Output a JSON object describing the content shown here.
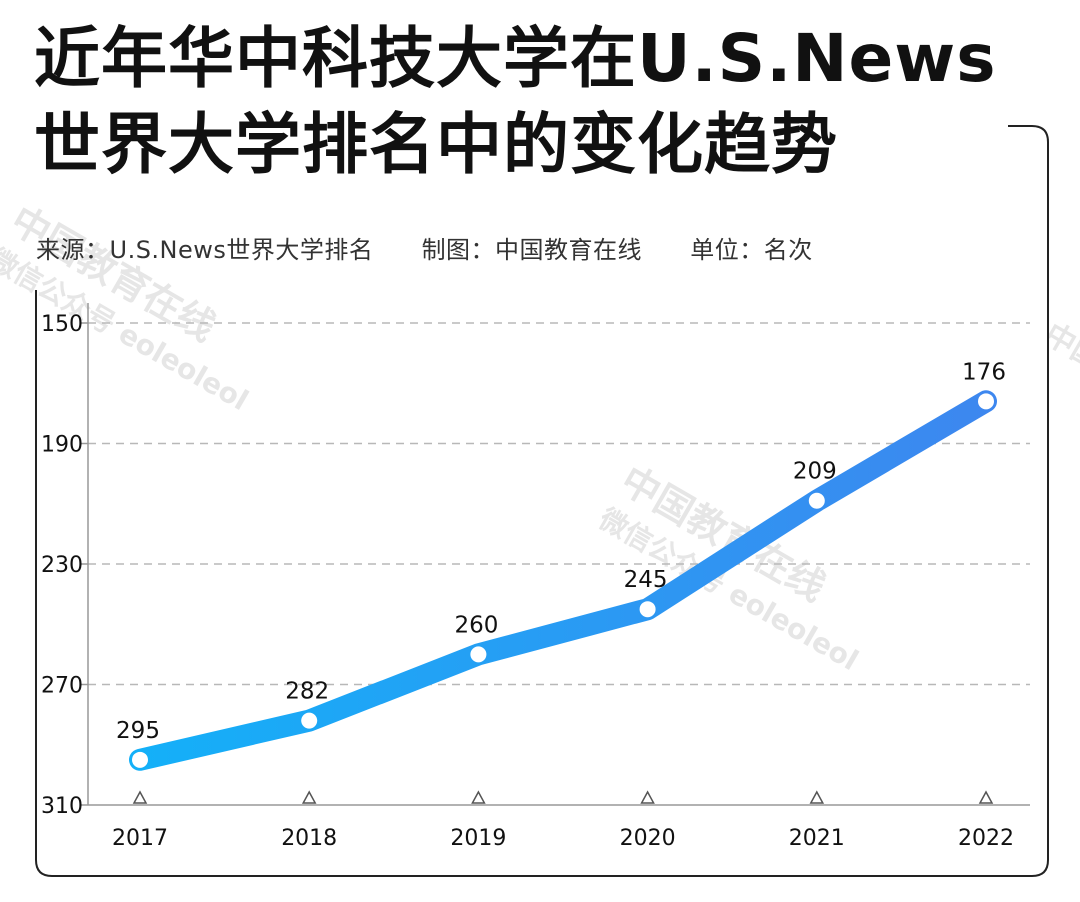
{
  "title_line1": "近年华中科技大学在U.S.News",
  "title_line2": "世界大学排名中的变化趋势",
  "source": "来源：U.S.News世界大学排名",
  "maker": "制图：中国教育在线",
  "unit": "单位：名次",
  "watermark": "中国教育在线",
  "watermark_sub": "微信公众号 eoleoleol",
  "colors": {
    "line_start": "#14b0f8",
    "line_end": "#3d87ef",
    "grid": "#b8b8b8",
    "frame": "#222222"
  },
  "chart_data": {
    "type": "line",
    "x": [
      "2017",
      "2018",
      "2019",
      "2020",
      "2021",
      "2022"
    ],
    "series": [
      {
        "values": [
          295,
          282,
          260,
          245,
          209,
          176
        ]
      }
    ],
    "data_labels": [
      "295",
      "282",
      "260",
      "245",
      "209",
      "176"
    ],
    "yticks": [
      "150",
      "190",
      "230",
      "270",
      "310"
    ],
    "ylim": [
      150,
      310
    ],
    "y_inverted": true,
    "grid": true,
    "grid_style": "dashed"
  }
}
